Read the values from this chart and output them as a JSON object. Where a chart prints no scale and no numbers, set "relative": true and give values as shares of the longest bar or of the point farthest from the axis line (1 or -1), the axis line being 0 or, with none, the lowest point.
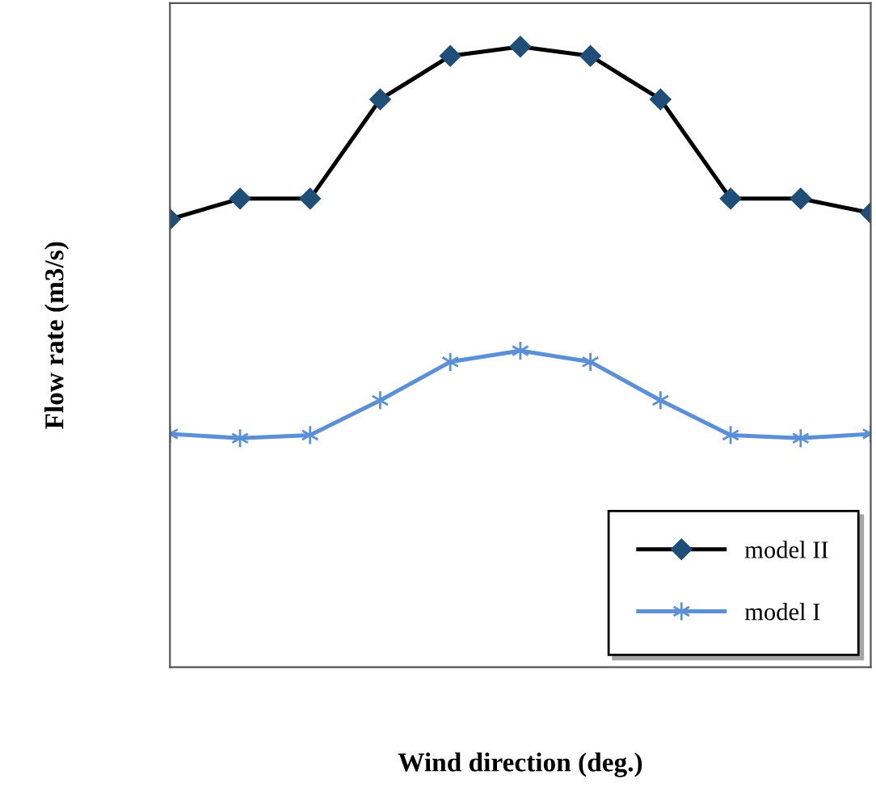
{
  "chart_data": {
    "type": "line",
    "relative": true,
    "xlabel": "Wind direction (deg.)",
    "ylabel": "Flow rate (m3/s)",
    "categories": [
      null,
      null,
      null,
      null,
      null,
      null,
      null,
      null,
      null,
      null,
      null
    ],
    "series": [
      {
        "name": "model II",
        "color": "#000000",
        "marker": "diamond",
        "values": [
          0.722,
          0.755,
          0.755,
          0.915,
          0.985,
          1,
          0.985,
          0.915,
          0.755,
          0.755,
          0.732
        ]
      },
      {
        "name": "model I",
        "color": "#5b8fd6",
        "marker": "cross",
        "values": [
          0.376,
          0.369,
          0.374,
          0.43,
          0.492,
          0.51,
          0.492,
          0.43,
          0.374,
          0.369,
          0.376
        ]
      }
    ],
    "legend": "bottom right",
    "grid": false,
    "tick_labels": false,
    "line_style": "solid"
  }
}
